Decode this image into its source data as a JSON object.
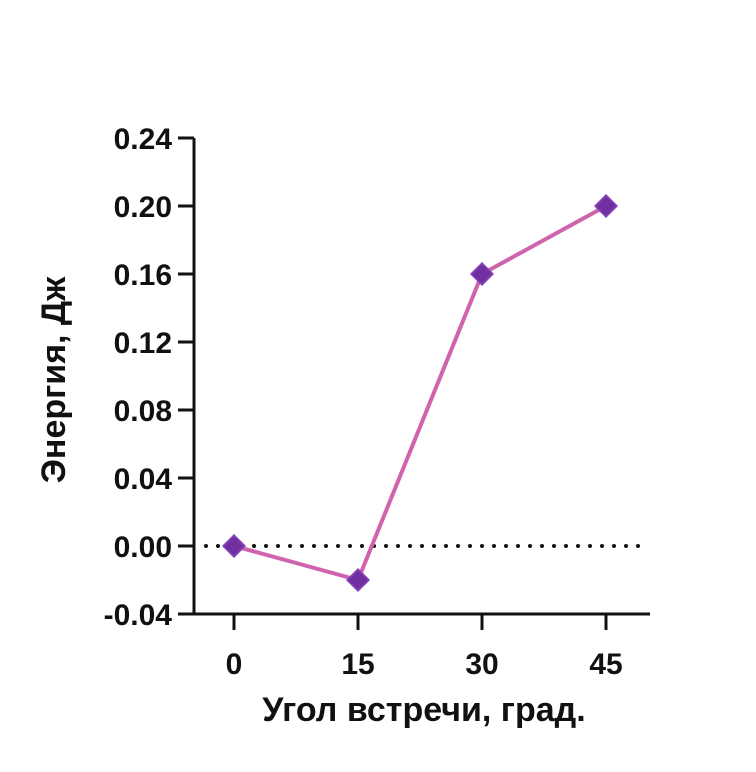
{
  "chart_data": {
    "type": "line",
    "title": "",
    "xlabel": "Угол встречи, град.",
    "ylabel": "Энергия, Дж",
    "x_ticks": [
      "0",
      "15",
      "30",
      "45"
    ],
    "y_ticks": [
      "-0.04",
      "0.00",
      "0.04",
      "0.08",
      "0.12",
      "0.16",
      "0.20",
      "0.24"
    ],
    "ylim": [
      -0.04,
      0.24
    ],
    "series": [
      {
        "x": [
          0,
          15,
          30,
          45
        ],
        "values": [
          0.0,
          -0.02,
          0.16,
          0.2
        ]
      }
    ],
    "reference_line": {
      "y": 0.0,
      "style": "dotted"
    },
    "grid": false,
    "colors": {
      "line": "#d063ad",
      "marker": "#7030a0",
      "axis": "#111111"
    }
  }
}
